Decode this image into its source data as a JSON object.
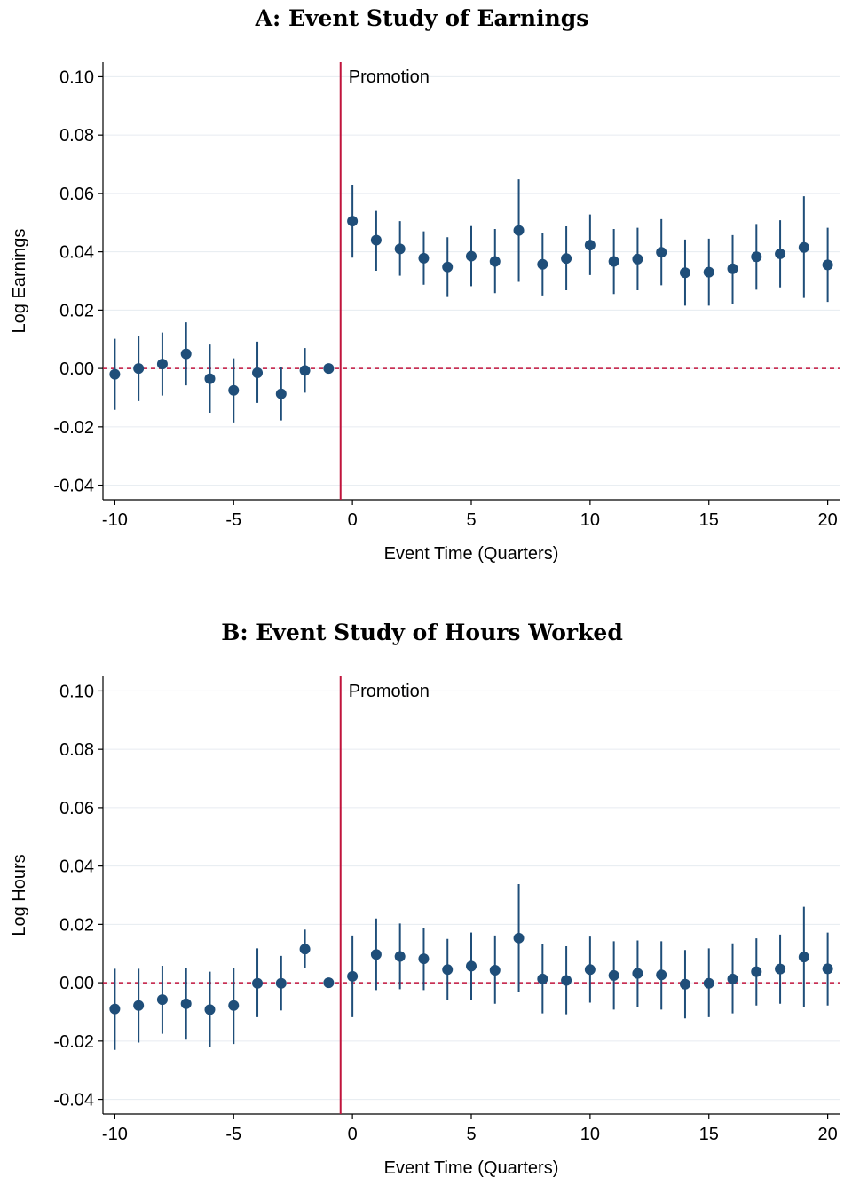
{
  "chart_data": [
    {
      "type": "scatter",
      "title": "A: Event Study of Earnings",
      "xlabel": "Event Time (Quarters)",
      "ylabel": "Log Earnings",
      "xlim": [
        -10.5,
        20.5
      ],
      "ylim": [
        -0.045,
        0.105
      ],
      "xticks": [
        -10,
        -5,
        0,
        5,
        10,
        15,
        20
      ],
      "xtick_labels": [
        "-10",
        "-5",
        "0",
        "5",
        "10",
        "15",
        "20"
      ],
      "yticks": [
        -0.04,
        -0.02,
        0.0,
        0.02,
        0.04,
        0.06,
        0.08,
        0.1
      ],
      "ytick_labels": [
        "-0.04",
        "-0.02",
        "0.00",
        "0.02",
        "0.04",
        "0.06",
        "0.08",
        "0.10"
      ],
      "grid": true,
      "vline": -0.5,
      "vline_label": "Promotion",
      "hline": 0,
      "colors": {
        "points": "#1f4e79",
        "vline": "#c0143c",
        "hline": "#c0143c",
        "grid": "#e6ebf0"
      },
      "series": [
        {
          "x": [
            -10,
            -9,
            -8,
            -7,
            -6,
            -5,
            -4,
            -3,
            -2,
            -1,
            0,
            1,
            2,
            3,
            4,
            5,
            6,
            7,
            8,
            9,
            10,
            11,
            12,
            13,
            14,
            15,
            16,
            17,
            18,
            19,
            20
          ],
          "y": [
            -0.002,
            0.0,
            0.0015,
            0.005,
            -0.0035,
            -0.0075,
            -0.0015,
            -0.0087,
            -0.0007,
            0.0,
            0.0505,
            0.044,
            0.041,
            0.0378,
            0.0348,
            0.0385,
            0.0367,
            0.0473,
            0.0357,
            0.0377,
            0.0423,
            0.0367,
            0.0375,
            0.0398,
            0.0328,
            0.033,
            0.0342,
            0.0383,
            0.0393,
            0.0415,
            0.0355
          ],
          "ci_low": [
            -0.0142,
            -0.0112,
            -0.0093,
            -0.0058,
            -0.0152,
            -0.0185,
            -0.0118,
            -0.0178,
            -0.0083,
            0.0,
            0.038,
            0.0335,
            0.0318,
            0.0287,
            0.0245,
            0.0282,
            0.0258,
            0.0297,
            0.025,
            0.0268,
            0.032,
            0.0255,
            0.0268,
            0.0285,
            0.0215,
            0.0215,
            0.0222,
            0.027,
            0.0278,
            0.0242,
            0.0228
          ],
          "ci_high": [
            0.0102,
            0.0112,
            0.0123,
            0.0158,
            0.0082,
            0.0035,
            0.0092,
            0.0005,
            0.007,
            0.0,
            0.063,
            0.054,
            0.0505,
            0.047,
            0.045,
            0.0488,
            0.0478,
            0.0648,
            0.0465,
            0.0487,
            0.0528,
            0.0478,
            0.0482,
            0.0512,
            0.0442,
            0.0445,
            0.0457,
            0.0495,
            0.0508,
            0.059,
            0.0482
          ]
        }
      ]
    },
    {
      "type": "scatter",
      "title": "B: Event Study of Hours Worked",
      "xlabel": "Event Time (Quarters)",
      "ylabel": "Log Hours",
      "xlim": [
        -10.5,
        20.5
      ],
      "ylim": [
        -0.045,
        0.105
      ],
      "xticks": [
        -10,
        -5,
        0,
        5,
        10,
        15,
        20
      ],
      "xtick_labels": [
        "-10",
        "-5",
        "0",
        "5",
        "10",
        "15",
        "20"
      ],
      "yticks": [
        -0.04,
        -0.02,
        0.0,
        0.02,
        0.04,
        0.06,
        0.08,
        0.1
      ],
      "ytick_labels": [
        "-0.04",
        "-0.02",
        "0.00",
        "0.02",
        "0.04",
        "0.06",
        "0.08",
        "0.10"
      ],
      "grid": true,
      "vline": -0.5,
      "vline_label": "Promotion",
      "hline": 0,
      "colors": {
        "points": "#1f4e79",
        "vline": "#c0143c",
        "hline": "#c0143c",
        "grid": "#e6ebf0"
      },
      "series": [
        {
          "x": [
            -10,
            -9,
            -8,
            -7,
            -6,
            -5,
            -4,
            -3,
            -2,
            -1,
            0,
            1,
            2,
            3,
            4,
            5,
            6,
            7,
            8,
            9,
            10,
            11,
            12,
            13,
            14,
            15,
            16,
            17,
            18,
            19,
            20
          ],
          "y": [
            -0.009,
            -0.0078,
            -0.0058,
            -0.0072,
            -0.0092,
            -0.0078,
            -0.0002,
            -0.0002,
            0.0115,
            0.0,
            0.0022,
            0.0097,
            0.009,
            0.0082,
            0.0045,
            0.0057,
            0.0043,
            0.0153,
            0.0013,
            0.0008,
            0.0045,
            0.0025,
            0.0032,
            0.0027,
            -0.0005,
            -0.0002,
            0.0013,
            0.0038,
            0.0047,
            0.0088,
            0.0048
          ],
          "ci_low": [
            -0.023,
            -0.0205,
            -0.0175,
            -0.0195,
            -0.022,
            -0.021,
            -0.0118,
            -0.0095,
            0.005,
            0.0,
            -0.0118,
            -0.0025,
            -0.0022,
            -0.0025,
            -0.006,
            -0.0058,
            -0.0072,
            -0.0032,
            -0.0105,
            -0.0108,
            -0.0068,
            -0.0092,
            -0.0082,
            -0.0092,
            -0.0122,
            -0.0118,
            -0.0105,
            -0.0078,
            -0.0072,
            -0.0082,
            -0.0078
          ],
          "ci_high": [
            0.0048,
            0.0048,
            0.0058,
            0.0052,
            0.0038,
            0.005,
            0.0118,
            0.0092,
            0.0182,
            0.0,
            0.0162,
            0.022,
            0.0203,
            0.0188,
            0.015,
            0.0172,
            0.0162,
            0.0338,
            0.0132,
            0.0125,
            0.0158,
            0.0142,
            0.0145,
            0.0142,
            0.0112,
            0.0118,
            0.0135,
            0.0152,
            0.0165,
            0.026,
            0.0172
          ]
        }
      ]
    }
  ]
}
